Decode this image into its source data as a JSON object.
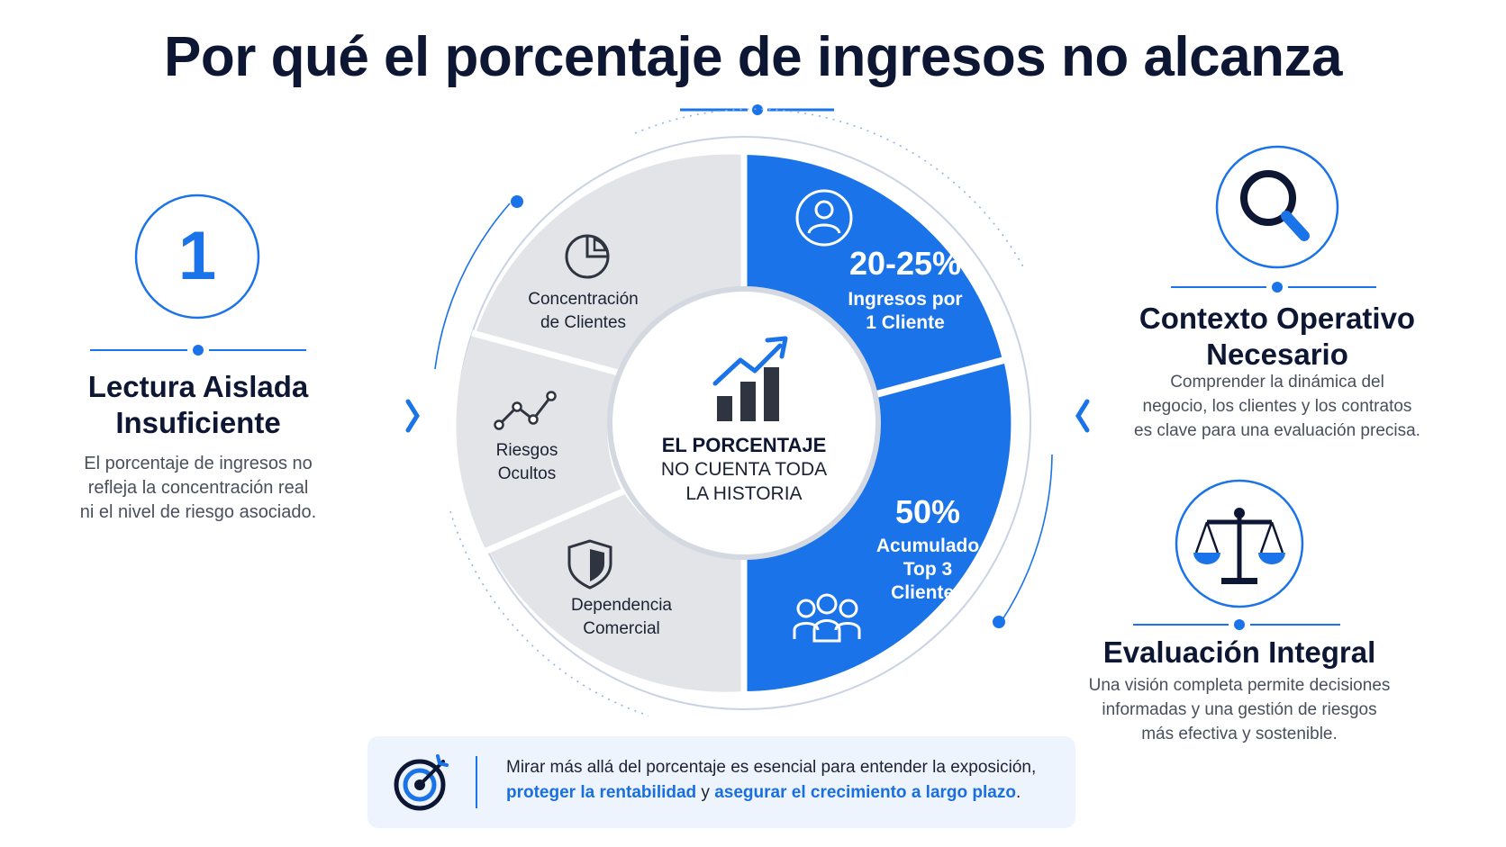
{
  "title": "Por qué el porcentaje de ingresos no alcanza",
  "left": {
    "number": "1",
    "heading_line1": "Lectura Aislada",
    "heading_line2": "Insuficiente",
    "text_line1": "El porcentaje de ingresos no",
    "text_line2": "refleja la concentración real",
    "text_line3": "ni el nivel de riesgo asociado."
  },
  "segments": {
    "concentracion": {
      "line1": "Concentración",
      "line2": "de Clientes",
      "icon": "pie-chart-icon"
    },
    "riesgos": {
      "line1": "Riesgos",
      "line2": "Ocultos",
      "icon": "line-trend-icon"
    },
    "dependencia": {
      "line1": "Dependencia",
      "line2": "Comercial",
      "icon": "shield-icon"
    },
    "one_client": {
      "value": "20-25%",
      "line1": "Ingresos por",
      "line2": "1 Cliente",
      "icon": "user-icon"
    },
    "top3": {
      "value": "50%",
      "line1": "Acumulado",
      "line2": "Top 3",
      "line3": "Clientes",
      "icon": "group-icon"
    }
  },
  "hub": {
    "line1": "EL PORCENTAJE",
    "line2": "NO CUENTA TODA",
    "line3": "LA HISTORIA",
    "icon": "bar-chart-growth-icon"
  },
  "right_top": {
    "icon": "magnifier-icon",
    "heading_line1": "Contexto Operativo",
    "heading_line2": "Necesario",
    "text_line1": "Comprender la dinámica del",
    "text_line2": "negocio, los clientes y los contratos",
    "text_line3": "es clave para una evaluación precisa."
  },
  "right_bottom": {
    "icon": "scales-icon",
    "heading": "Evaluación Integral",
    "text_line1": "Una visión completa permite decisiones",
    "text_line2": "informadas y una gestión de riesgos",
    "text_line3": "más efectiva y sostenible."
  },
  "banner": {
    "icon": "target-icon",
    "line1": "Mirar más allá del porcentaje es esencial para entender la exposición,",
    "hl1": "proteger la rentabilidad",
    "connector": " y ",
    "hl2": "asegurar el crecimiento a largo plazo",
    "end": "."
  },
  "colors": {
    "accent": "#1a73e8",
    "navy": "#0d1733",
    "gray_segment": "#e3e4e8"
  }
}
